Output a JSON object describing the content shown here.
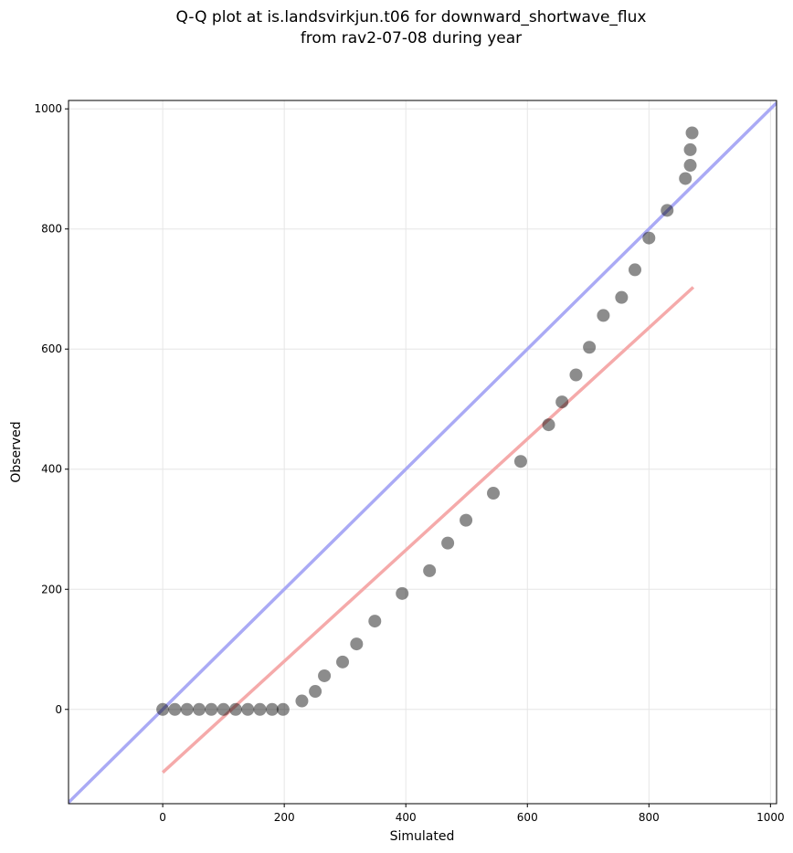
{
  "chart_data": {
    "type": "scatter",
    "title": [
      "Q-Q plot at is.landsvirkjun.t06 for downward_shortwave_flux",
      "from rav2-07-08 during year"
    ],
    "xlabel": "Simulated",
    "ylabel": "Observed",
    "xlim": [
      -155,
      1010
    ],
    "ylim": [
      -157,
      1014
    ],
    "xticks": [
      0,
      200,
      400,
      600,
      800,
      1000
    ],
    "yticks": [
      0,
      200,
      400,
      600,
      800,
      1000
    ],
    "grid": true,
    "color": "#000000",
    "x": [
      0,
      20,
      40,
      60,
      80,
      100,
      120,
      140,
      160,
      180,
      198,
      229,
      251,
      266,
      296,
      319,
      349,
      394,
      439,
      469,
      499,
      544,
      589,
      635,
      657,
      680,
      702,
      725,
      755,
      777,
      800,
      830,
      860,
      868,
      868,
      871
    ],
    "values": [
      0,
      0,
      0,
      0,
      0,
      0,
      0,
      0,
      0,
      0,
      0,
      14,
      30,
      56,
      79,
      109,
      147,
      193,
      231,
      277,
      315,
      360,
      413,
      474,
      512,
      557,
      603,
      656,
      686,
      732,
      785,
      831,
      884,
      906,
      932,
      960
    ],
    "lines": [
      {
        "color": "#aaaaf5",
        "x": [
          -155,
          1010
        ],
        "values": [
          -155,
          1010
        ]
      },
      {
        "color": "#f5aaaa",
        "x": [
          0,
          873
        ],
        "values": [
          -105,
          703
        ]
      }
    ]
  }
}
